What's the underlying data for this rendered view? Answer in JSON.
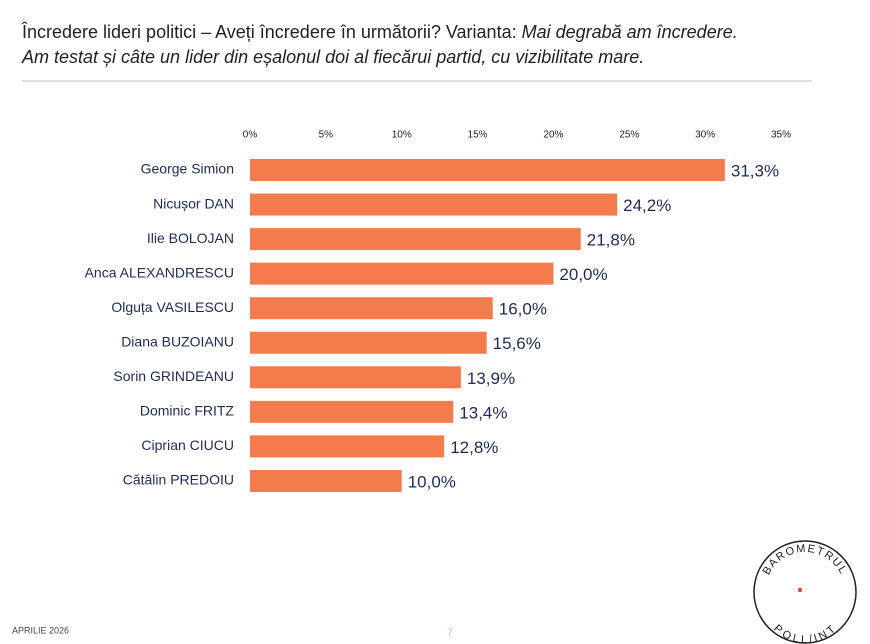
{
  "title": [
    "Încredere lideri politici – Aveți încredere în următorii? Varianta: ",
    "Mai degrabă am încredere.",
    "Am testat și câte un lider din eșalonul doi al fiecărui partid, cu vizibilitate mare."
  ],
  "chart_data": {
    "type": "bar",
    "orientation": "horizontal",
    "color": "#f47b4b",
    "categories": [
      "George Simion",
      "Nicușor DAN",
      "Ilie BOLOJAN",
      "Anca ALEXANDRESCU",
      "Olguța VASILESCU",
      "Diana BUZOIANU",
      "Sorin GRINDEANU",
      "Dominic FRITZ",
      "Ciprian CIUCU",
      "Cătălin PREDOIU"
    ],
    "values": [
      31.3,
      24.2,
      21.8,
      20.0,
      16.0,
      15.6,
      13.9,
      13.4,
      12.8,
      10.0
    ],
    "value_labels": [
      "31,3%",
      "24,2%",
      "21,8%",
      "20,0%",
      "16,0%",
      "15,6%",
      "13,9%",
      "13,4%",
      "12,8%",
      "10,0%"
    ],
    "xlim": [
      0,
      35
    ],
    "xticks": [
      {
        "value": 0,
        "label": "0%"
      },
      {
        "value": 5,
        "label": "5%"
      },
      {
        "value": 10,
        "label": "10%"
      },
      {
        "value": 15,
        "label": "15%"
      },
      {
        "value": 20,
        "label": "20%"
      },
      {
        "value": 25,
        "label": "25%"
      },
      {
        "value": 30,
        "label": "30%"
      },
      {
        "value": 35,
        "label": "35%"
      }
    ],
    "grid": false
  },
  "footer": "APRILIE 2026",
  "page_number": "7",
  "logo": {
    "top": "BAROMETRUL",
    "bottom": "POLL/INT"
  }
}
